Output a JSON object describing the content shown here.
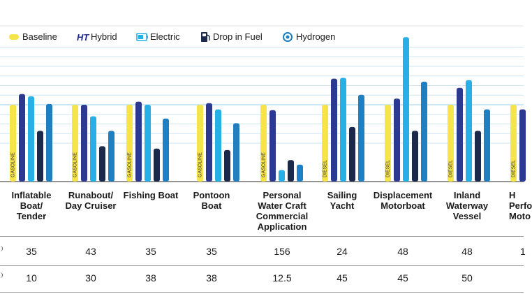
{
  "legend": [
    {
      "label": "Baseline",
      "icon": "baseline-icon",
      "color": "#f5e44a"
    },
    {
      "label": "Hybrid",
      "icon": "hybrid-icon",
      "color": "#1f2a8a"
    },
    {
      "label": "Electric",
      "icon": "electric-icon",
      "color": "#27b0e6"
    },
    {
      "label": "Drop in Fuel",
      "icon": "fuel-pump-icon",
      "color": "#1b2a4a"
    },
    {
      "label": "Hydrogen",
      "icon": "hydrogen-icon",
      "color": "#1f7fc0"
    }
  ],
  "chart_data": {
    "type": "bar",
    "categories": [
      "Inflatable\nBoat/\nTender",
      "Runabout/\nDay Cruiser",
      "Fishing Boat",
      "Pontoon\nBoat",
      "Personal\nWater Craft\nCommercial\nApplication",
      "Sailing\nYacht",
      "Displacement\nMotorboat",
      "Inland\nWaterway\nVessel",
      "H\nPerfo\nMoto"
    ],
    "baseline_labels": [
      "GASOLINE",
      "GASOLINE",
      "GASOLINE",
      "GASOLINE",
      "GASOLINE",
      "DIESEL",
      "DIESEL",
      "DIESEL",
      "DIESEL"
    ],
    "series": [
      {
        "name": "Baseline",
        "color": "#f5e44a",
        "values": [
          100,
          100,
          100,
          100,
          100,
          100,
          100,
          100,
          100
        ]
      },
      {
        "name": "Hybrid",
        "color": "#2b3990",
        "values": [
          114,
          100,
          104,
          102,
          93,
          134,
          108,
          122,
          94
        ]
      },
      {
        "name": "Electric",
        "color": "#27b0e6",
        "values": [
          111,
          85,
          100,
          94,
          15,
          135,
          188,
          132,
          null
        ]
      },
      {
        "name": "Drop in Fuel",
        "color": "#1b2a4a",
        "values": [
          66,
          46,
          43,
          41,
          28,
          71,
          66,
          66,
          null
        ]
      },
      {
        "name": "Hydrogen",
        "color": "#1f7fc0",
        "values": [
          101,
          66,
          82,
          76,
          22,
          113,
          130,
          94,
          null
        ]
      }
    ],
    "ylim": [
      0,
      200
    ],
    "grid": true,
    "legend_position": "top",
    "table_rows": [
      [
        "35",
        "43",
        "35",
        "35",
        "156",
        "24",
        "48",
        "48",
        "1"
      ],
      [
        "10",
        "30",
        "38",
        "38",
        "12.5",
        "45",
        "45",
        "50",
        ""
      ]
    ]
  }
}
